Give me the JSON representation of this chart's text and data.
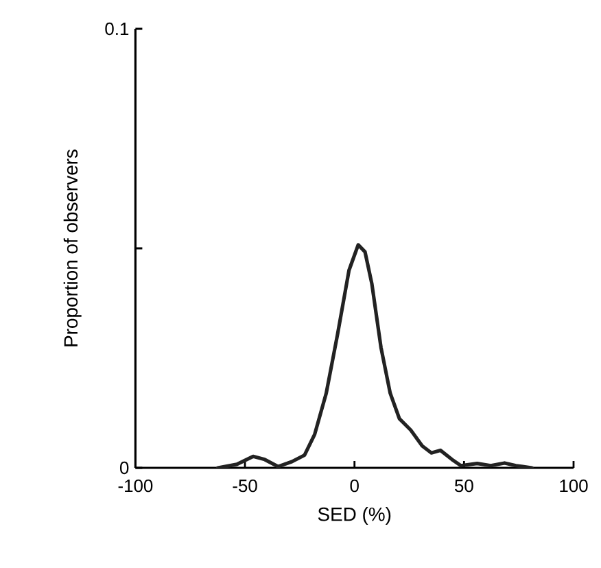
{
  "chart_data": {
    "type": "line",
    "xlabel": "SED (%)",
    "ylabel": "Proportion of observers",
    "xlim": [
      -100,
      100
    ],
    "xticks": [
      -100,
      -50,
      0,
      50,
      100
    ],
    "ylim": [
      0,
      0.1
    ],
    "yticks": [
      0,
      {
        "value": 0.05,
        "label": null
      },
      0.1
    ],
    "marker": "none",
    "line_style": "solid",
    "series": [
      {
        "color": "#222222",
        "x": [
          -62.4,
          -53.7,
          -46.3,
          -41,
          -34.9,
          -28.6,
          -22.8,
          -18.2,
          -12.9,
          -7.7,
          -2.5,
          1.7,
          4.8,
          7.9,
          12.1,
          16.3,
          20.5,
          25.7,
          30.9,
          35.1,
          39.2,
          44.5,
          48.6,
          56,
          62.2,
          68.5,
          73.7,
          81
        ],
        "values": [
          0,
          0.0008,
          0.0026,
          0.0019,
          0.0003,
          0.0014,
          0.0029,
          0.0076,
          0.017,
          0.0305,
          0.045,
          0.0508,
          0.0492,
          0.042,
          0.0274,
          0.017,
          0.0112,
          0.0086,
          0.005,
          0.0034,
          0.004,
          0.0019,
          0.0005,
          0.001,
          0.0005,
          0.0011,
          0.0005,
          0
        ]
      }
    ]
  }
}
